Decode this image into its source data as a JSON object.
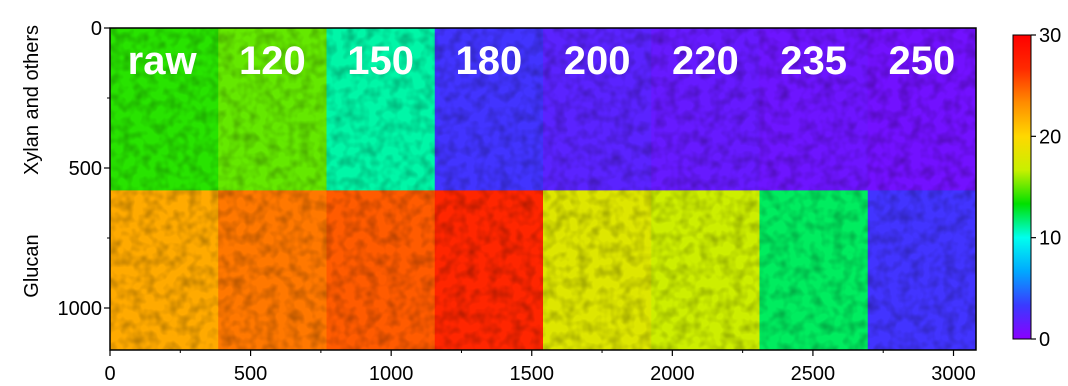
{
  "chart_data": {
    "type": "heatmap",
    "title": "",
    "xlabel": "",
    "ylabel": "",
    "xlim": [
      0,
      3080
    ],
    "ylim": [
      1150,
      0
    ],
    "x_ticks": [
      0,
      500,
      1000,
      1500,
      2000,
      2500,
      3000
    ],
    "y_ticks": [
      0,
      500,
      1000
    ],
    "row_labels": [
      "Xylan and others",
      "Glucan"
    ],
    "row_boundaries": [
      0,
      580,
      1150
    ],
    "column_labels": [
      "raw",
      "120",
      "150",
      "180",
      "200",
      "220",
      "235",
      "250"
    ],
    "column_boundaries": [
      0,
      385,
      770,
      1155,
      1540,
      1925,
      2310,
      2695,
      3080
    ],
    "estimated_cell_means": {
      "Xylan and others": [
        14,
        15,
        11,
        3,
        2,
        1.5,
        1.2,
        1
      ],
      "Glucan": [
        22,
        24,
        25,
        27,
        18,
        17,
        12,
        3
      ]
    },
    "colorbar": {
      "min": 0,
      "max": 30,
      "ticks": [
        0,
        10,
        20,
        30
      ],
      "colors": [
        "#8a00ff",
        "#3a3aff",
        "#00a8ff",
        "#00ffee",
        "#00e000",
        "#c8f000",
        "#ffd800",
        "#ff8c00",
        "#ff2a00",
        "#ff0000"
      ]
    }
  }
}
